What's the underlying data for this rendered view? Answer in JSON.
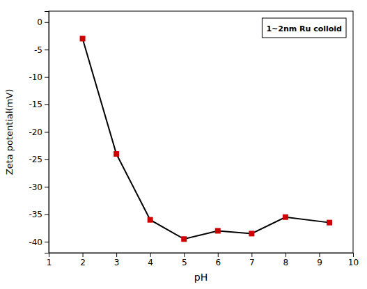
{
  "chart_data": {
    "type": "line",
    "x": [
      2,
      3,
      4,
      5,
      6,
      7,
      8,
      9.3
    ],
    "series": [
      {
        "name": "1~2nm Ru colloid",
        "color": "black",
        "line_style": "solid",
        "marker": "square",
        "colors": [
          "#cc0000",
          "#cc0000",
          "#cc0000",
          "#cc0000",
          "#cc0000",
          "#cc0000",
          "#cc0000",
          "#cc0000"
        ],
        "values": [
          -3,
          -24,
          -36,
          -39.5,
          -38,
          -38.5,
          -35.5,
          -36.5
        ]
      }
    ],
    "xlabel": "pH",
    "ylabel": "Zeta potential(mV)",
    "xlim": [
      1,
      10
    ],
    "ylim": [
      -42,
      2
    ],
    "xticks": [
      1,
      2,
      3,
      4,
      5,
      6,
      7,
      8,
      9,
      10
    ],
    "yticks": [
      0,
      -5,
      -10,
      -15,
      -20,
      -25,
      -30,
      -35,
      -40
    ],
    "legend": "upper right",
    "grid": false
  }
}
